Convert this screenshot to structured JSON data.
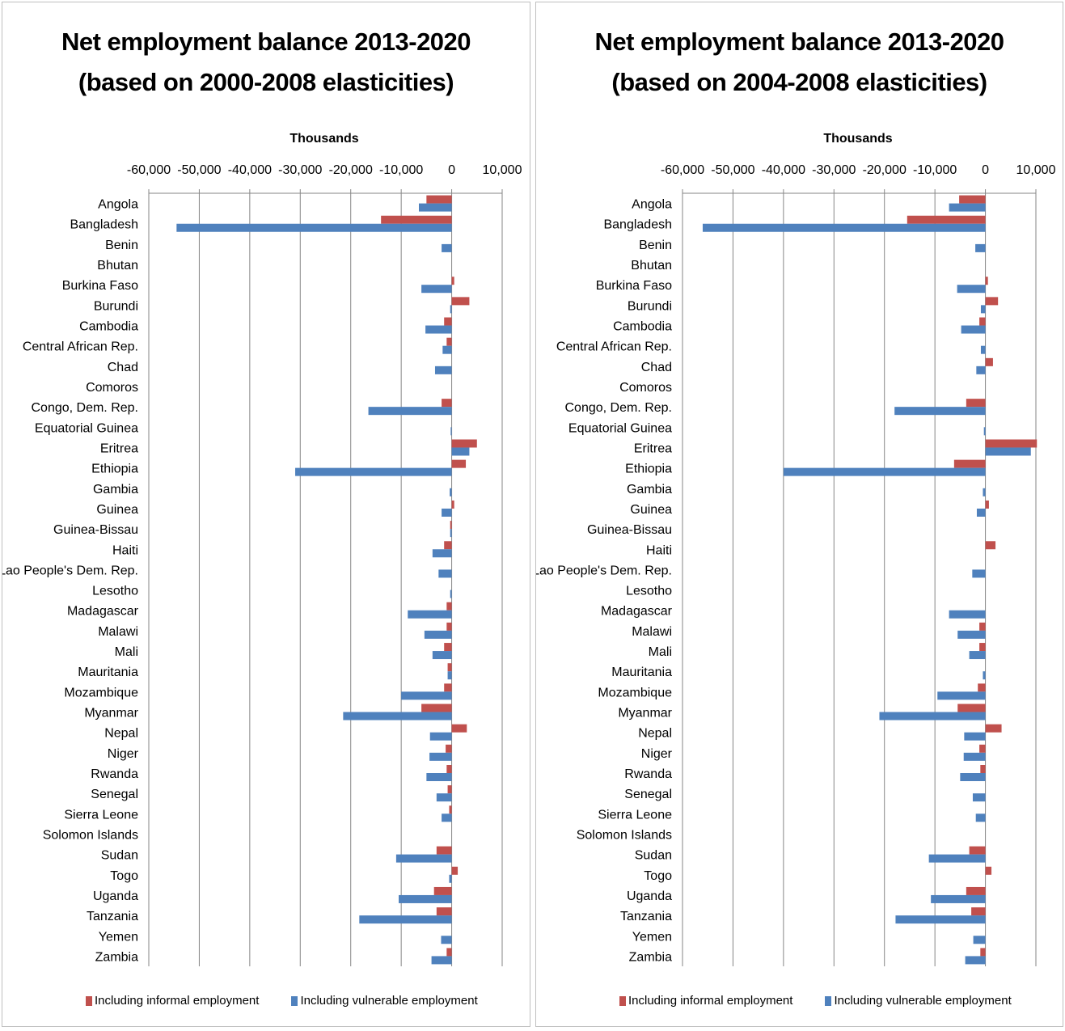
{
  "chart_data": [
    {
      "type": "bar",
      "orientation": "horizontal",
      "title_lines": [
        "Net employment balance 2013-2020",
        "(based on 2000-2008 elasticities)"
      ],
      "unit_label": "Thousands",
      "xlim": [
        -60000,
        10000
      ],
      "tick_values": [
        -60000,
        -50000,
        -40000,
        -30000,
        -20000,
        -10000,
        0,
        10000
      ],
      "tick_labels": [
        "-60,000",
        "-50,000",
        "-40,000",
        "-30,000",
        "-20,000",
        "-10,000",
        "0",
        "10,000"
      ],
      "axis_position": "top",
      "grid": true,
      "legend_position": "bottom",
      "categories": [
        "Angola",
        "Bangladesh",
        "Benin",
        "Bhutan",
        "Burkina Faso",
        "Burundi",
        "Cambodia",
        "Central African Rep.",
        "Chad",
        "Comoros",
        "Congo, Dem. Rep.",
        "Equatorial Guinea",
        "Eritrea",
        "Ethiopia",
        "Gambia",
        "Guinea",
        "Guinea-Bissau",
        "Haiti",
        "Lao People's Dem. Rep.",
        "Lesotho",
        "Madagascar",
        "Malawi",
        "Mali",
        "Mauritania",
        "Mozambique",
        "Myanmar",
        "Nepal",
        "Niger",
        "Rwanda",
        "Senegal",
        "Sierra Leone",
        "Solomon Islands",
        "Sudan",
        "Togo",
        "Uganda",
        "Tanzania",
        "Yemen",
        "Zambia"
      ],
      "series": [
        {
          "name": "Including informal employment",
          "color": "#c0504d",
          "values": [
            -5000,
            -14000,
            0,
            0,
            500,
            3500,
            -1500,
            -1000,
            0,
            0,
            -2000,
            0,
            5000,
            2800,
            0,
            500,
            -300,
            -1500,
            0,
            0,
            -1000,
            -1000,
            -1500,
            -800,
            -1500,
            -6000,
            3000,
            -1200,
            -1000,
            -800,
            -500,
            0,
            -3000,
            1200,
            -3500,
            -3000,
            0,
            -1000
          ]
        },
        {
          "name": "Including vulnerable employment",
          "color": "#4f81bd",
          "values": [
            -6500,
            -54500,
            -2000,
            0,
            -6000,
            -300,
            -5200,
            -1800,
            -3300,
            0,
            -16500,
            -200,
            3500,
            -31000,
            -400,
            -2000,
            -300,
            -3800,
            -2600,
            -300,
            -8700,
            -5400,
            -3800,
            -800,
            -10000,
            -21500,
            -4300,
            -4400,
            -5000,
            -3000,
            -2000,
            0,
            -11000,
            -500,
            -10500,
            -18300,
            -2100,
            -4000
          ]
        }
      ]
    },
    {
      "type": "bar",
      "orientation": "horizontal",
      "title_lines": [
        "Net employment balance 2013-2020",
        "(based on 2004-2008 elasticities)"
      ],
      "unit_label": "Thousands",
      "xlim": [
        -60000,
        10000
      ],
      "tick_values": [
        -60000,
        -50000,
        -40000,
        -30000,
        -20000,
        -10000,
        0,
        10000
      ],
      "tick_labels": [
        "-60,000",
        "-50,000",
        "-40,000",
        "-30,000",
        "-20,000",
        "-10,000",
        "0",
        "10,000"
      ],
      "axis_position": "top",
      "grid": true,
      "legend_position": "bottom",
      "categories": [
        "Angola",
        "Bangladesh",
        "Benin",
        "Bhutan",
        "Burkina Faso",
        "Burundi",
        "Cambodia",
        "Central African Rep.",
        "Chad",
        "Comoros",
        "Congo, Dem. Rep.",
        "Equatorial Guinea",
        "Eritrea",
        "Ethiopia",
        "Gambia",
        "Guinea",
        "Guinea-Bissau",
        "Haiti",
        "Lao People's Dem. Rep.",
        "Lesotho",
        "Madagascar",
        "Malawi",
        "Mali",
        "Mauritania",
        "Mozambique",
        "Myanmar",
        "Nepal",
        "Niger",
        "Rwanda",
        "Senegal",
        "Sierra Leone",
        "Solomon Islands",
        "Sudan",
        "Togo",
        "Uganda",
        "Tanzania",
        "Yemen",
        "Zambia"
      ],
      "series": [
        {
          "name": "Including informal employment",
          "color": "#c0504d",
          "values": [
            -5200,
            -15500,
            0,
            0,
            500,
            2500,
            -1200,
            0,
            1500,
            0,
            -3800,
            0,
            10200,
            -6200,
            0,
            700,
            0,
            2000,
            0,
            0,
            0,
            -1200,
            -1200,
            0,
            -1500,
            -5500,
            3200,
            -1200,
            -1000,
            0,
            0,
            0,
            -3200,
            1200,
            -3800,
            -2800,
            0,
            -1000
          ]
        },
        {
          "name": "Including vulnerable employment",
          "color": "#4f81bd",
          "values": [
            -7200,
            -56000,
            -2000,
            0,
            -5600,
            -900,
            -4800,
            -900,
            -1800,
            0,
            -18000,
            -300,
            9000,
            -40000,
            -500,
            -1700,
            0,
            0,
            -2600,
            0,
            -7200,
            -5500,
            -3200,
            -500,
            -9500,
            -21000,
            -4200,
            -4300,
            -5000,
            -2500,
            -1900,
            0,
            -11200,
            0,
            -10800,
            -17800,
            -2400,
            -4000
          ]
        }
      ]
    }
  ]
}
